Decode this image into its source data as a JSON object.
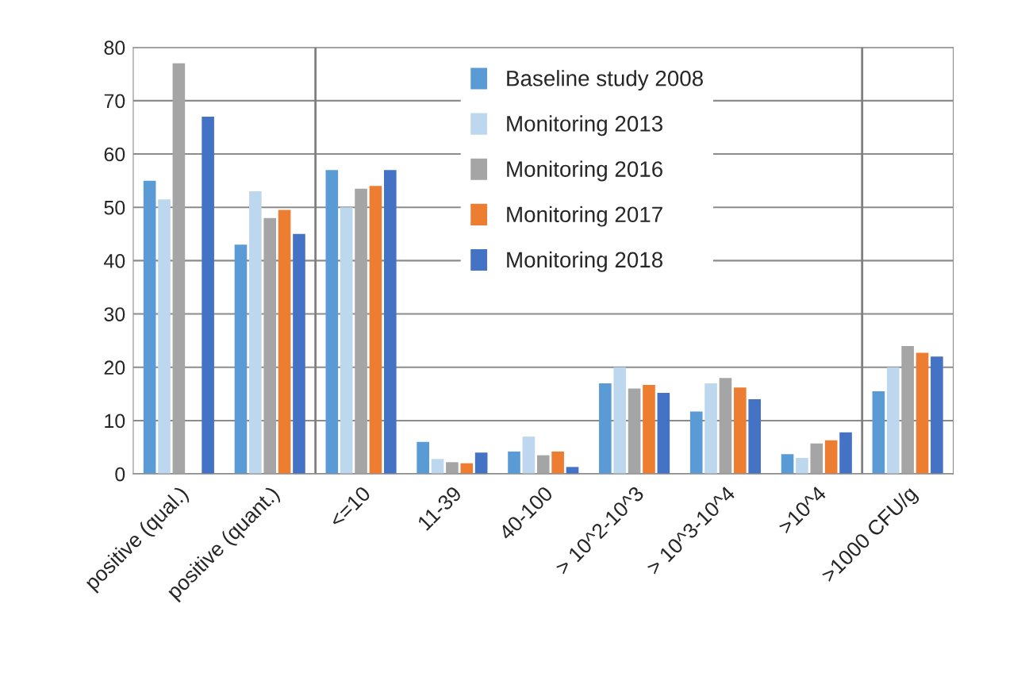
{
  "chart_data": {
    "type": "bar",
    "categories": [
      "positive (qual.)",
      "positive (quant.)",
      "<=10",
      "11-39",
      "40-100",
      "> 10^2-10^3",
      "> 10^3-10^4",
      ">10^4",
      ">1000 CFU/g"
    ],
    "series": [
      {
        "name": "Baseline study 2008",
        "color": "#5b9bd5",
        "values": [
          55,
          43,
          57,
          6,
          4.2,
          17,
          11.7,
          3.7,
          15.5
        ]
      },
      {
        "name": "Monitoring 2013",
        "color": "#bdd7ee",
        "values": [
          51.5,
          53,
          50,
          2.8,
          7,
          20,
          17,
          3,
          20
        ]
      },
      {
        "name": "Monitoring 2016",
        "color": "#a5a5a5",
        "values": [
          77,
          48,
          53.5,
          2.2,
          3.5,
          16,
          18,
          5.7,
          24
        ]
      },
      {
        "name": "Monitoring 2017",
        "color": "#ed7d31",
        "values": [
          null,
          49.5,
          54,
          2,
          4.2,
          16.7,
          16.2,
          6.3,
          22.7
        ]
      },
      {
        "name": "Monitoring 2018",
        "color": "#4472c4",
        "values": [
          67,
          45,
          57,
          4,
          1.3,
          15.2,
          14,
          7.8,
          22
        ]
      }
    ],
    "ylim": [
      0,
      80
    ],
    "yticks": [
      0,
      10,
      20,
      30,
      40,
      50,
      60,
      70,
      80
    ],
    "grid": "y",
    "legend": "top right"
  }
}
